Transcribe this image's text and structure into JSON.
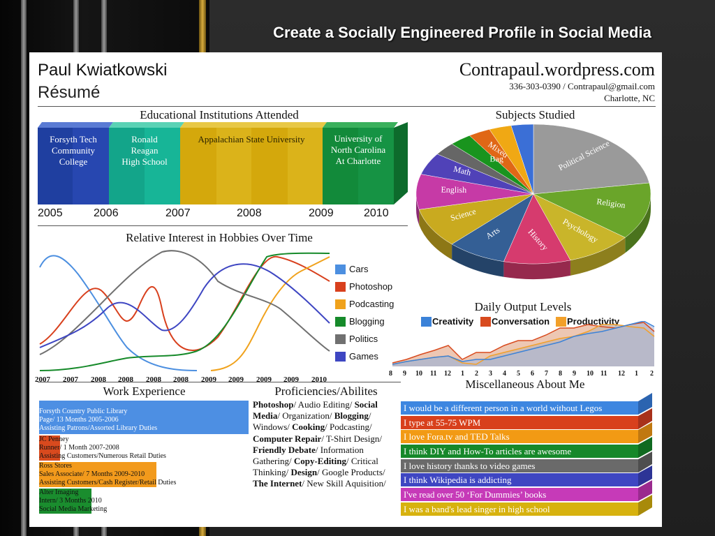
{
  "slide_title": "Create a Socially Engineered Profile in Social Media",
  "header": {
    "name": "Paul Kwiatkowski",
    "subtitle": "Résumé",
    "site": "Contrapaul.wordpress.com",
    "contact_line1": "336-303-0390 / Contrapaul@gmail.com",
    "contact_line2": "Charlotte, NC"
  },
  "education": {
    "title": "Educational Institutions Attended",
    "institutions": [
      {
        "name_line1": "Forsyth Tech",
        "name_line2": "Community",
        "name_line3": "College",
        "color": "#1f3fa0"
      },
      {
        "name_line1": "Ronald",
        "name_line2": "Reagan",
        "name_line3": "High School",
        "color": "#13a58a"
      },
      {
        "name_line1": "Appalachian State University",
        "color": "#d4a80c"
      },
      {
        "name_line1": "University of",
        "name_line2": "North Carolina",
        "name_line3": "At Charlotte",
        "color": "#128a3a"
      }
    ],
    "years": [
      "2005",
      "2006",
      "2007",
      "2008",
      "2009",
      "2010"
    ]
  },
  "subjects": {
    "title": "Subjects Studied",
    "slices": [
      {
        "label": "Political Science",
        "value": 22,
        "color": "#9a9a9a"
      },
      {
        "label": "Religion",
        "value": 13,
        "color": "#6aa52a"
      },
      {
        "label": "Psychology",
        "value": 9,
        "color": "#c9b52a"
      },
      {
        "label": "History",
        "value": 9,
        "color": "#d63b6e"
      },
      {
        "label": "Arts",
        "value": 8,
        "color": "#345f95"
      },
      {
        "label": "Science",
        "value": 9,
        "color": "#c9aa1f"
      },
      {
        "label": "English",
        "value": 8,
        "color": "#c63aa6"
      },
      {
        "label": "Math",
        "value": 5,
        "color": "#5042b8"
      },
      {
        "label": "",
        "value": 3,
        "color": "#666666"
      },
      {
        "label": "",
        "value": 3,
        "color": "#19941e"
      },
      {
        "label": "Mixed",
        "label2": "Bag",
        "value": 3,
        "color": "#e06716"
      },
      {
        "label": "",
        "value": 3,
        "color": "#f0a814"
      },
      {
        "label": "",
        "value": 3,
        "color": "#3b6fd6"
      }
    ]
  },
  "hobbies": {
    "title": "Relative Interest in Hobbies Over Time",
    "x_labels": [
      "2007",
      "2007",
      "2008",
      "2008",
      "2008",
      "2008",
      "2009",
      "2009",
      "2009",
      "2009",
      "2010"
    ],
    "legend": [
      {
        "name": "Cars",
        "color": "#4c8fe0"
      },
      {
        "name": "Photoshop",
        "color": "#d8401d"
      },
      {
        "name": "Podcasting",
        "color": "#f0a21c"
      },
      {
        "name": "Blogging",
        "color": "#168a2a"
      },
      {
        "name": "Politics",
        "color": "#707070"
      },
      {
        "name": "Games",
        "color": "#3e46c2"
      }
    ]
  },
  "work": {
    "title": "Work Experience",
    "jobs": [
      {
        "line1": "Forsyth Country Public Library",
        "line2": "Page/ 13 Months 2005-2006",
        "line3": "Assisting Patrons/Assorted Library Duties",
        "color": "#4d8fe3"
      },
      {
        "line1": "JC Penney",
        "line2": "Runner/ 1 Month 2007-2008",
        "line3": "Assisting Customers/Numerous Retail Duties",
        "color": "#d84a1e"
      },
      {
        "line1": "Ross Stores",
        "line2": "Sales Associate/ 7 Months 2009-2010",
        "line3": "Assisting Customers/Cash Register/Retail Duties",
        "color": "#f29a1c"
      },
      {
        "line1": "Alter Imaging",
        "line2": "Intern/ 3 Months 2010",
        "line3": "Social Media Marketing",
        "color": "#1a8d2e"
      }
    ]
  },
  "proficiencies": {
    "title": "Proficiencies/Abilites",
    "text_bold": [
      "Photoshop",
      "Social Media",
      "Blogging",
      "Cooking",
      "Computer Repair",
      "Friendly Debate",
      "Copy-Editing",
      "Design",
      "The Internet"
    ]
  },
  "output": {
    "title": "Daily Output Levels",
    "legend": [
      {
        "name": "Creativity",
        "color": "#3b82d8"
      },
      {
        "name": "Conversation",
        "color": "#d84a1e"
      },
      {
        "name": "Productivity",
        "color": "#f2a02a"
      }
    ],
    "hours": [
      "8",
      "9",
      "10",
      "11",
      "12",
      "1",
      "2",
      "3",
      "4",
      "5",
      "6",
      "7",
      "8",
      "9",
      "10",
      "11",
      "12",
      "1",
      "2"
    ]
  },
  "misc": {
    "title": "Miscellaneous About Me",
    "items": [
      {
        "text": "I would be a different person in a world without Legos",
        "color": "#3d86e0"
      },
      {
        "text": "I type at 55-75 WPM",
        "color": "#d8401c"
      },
      {
        "text": "I love Fora.tv and TED Talks",
        "color": "#f29a14"
      },
      {
        "text": "I think DIY and How-To articles are awesome",
        "color": "#16882a"
      },
      {
        "text": "I love history thanks to video games",
        "color": "#6a6a6a"
      },
      {
        "text": "I think Wikipedia is addicting",
        "color": "#3e46c2"
      },
      {
        "text": "I've read over 50 ‘For Dummies’ books",
        "color": "#c63ab8"
      },
      {
        "text": "I was a band's lead singer in high school",
        "color": "#d7b20e"
      }
    ]
  }
}
